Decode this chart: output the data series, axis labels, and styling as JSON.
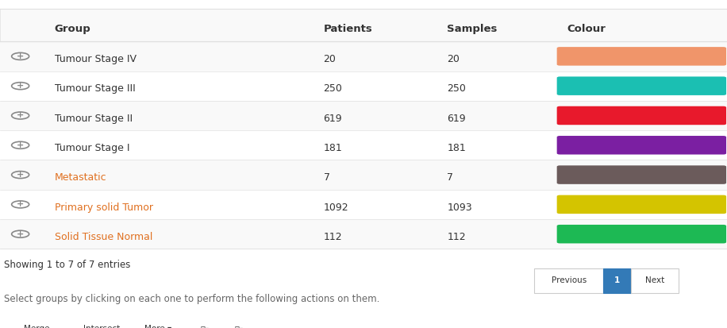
{
  "headers": [
    "Group",
    "Patients",
    "Samples",
    "Colour"
  ],
  "rows": [
    {
      "group": "Tumour Stage IV",
      "patients": "20",
      "samples": "20",
      "color": "#F4A460",
      "color_hex": "#F0956A"
    },
    {
      "group": "Tumour Stage III",
      "patients": "250",
      "samples": "250",
      "color": "#20B2AA",
      "color_hex": "#1BBFB2"
    },
    {
      "group": "Tumour Stage II",
      "patients": "619",
      "samples": "619",
      "color": "#E8192C",
      "color_hex": "#E8192C"
    },
    {
      "group": "Tumour Stage I",
      "patients": "181",
      "samples": "181",
      "color": "#7B1FA2",
      "color_hex": "#7B1FA2"
    },
    {
      "group": "Metastatic",
      "patients": "7",
      "samples": "7",
      "color": "#6D5E5E",
      "color_hex": "#6B5B5B"
    },
    {
      "group": "Primary solid Tumor",
      "patients": "1092",
      "samples": "1093",
      "color": "#D4C400",
      "color_hex": "#D4C400"
    },
    {
      "group": "Solid Tissue Normal",
      "patients": "112",
      "samples": "112",
      "color": "#1DB954",
      "color_hex": "#1DB954"
    }
  ],
  "footer_text": "Showing 1 to 7 of 7 entries",
  "instruction_text": "Select groups by clicking on each one to perform the following actions on them.",
  "bg_color": "#ffffff",
  "header_bg": "#f9f9f9",
  "row_bg_even": "#f9f9f9",
  "row_bg_odd": "#ffffff",
  "border_color": "#e0e0e0",
  "text_dark": "#333333",
  "text_orange": "#E07020",
  "plus_color": "#888888",
  "pagination_active_bg": "#337ab7",
  "pagination_active_text": "#ffffff",
  "pagination_border": "#cccccc",
  "remove_btn_color": "#d9534f",
  "btn_border": "#cccccc",
  "btn_text": "#333333"
}
